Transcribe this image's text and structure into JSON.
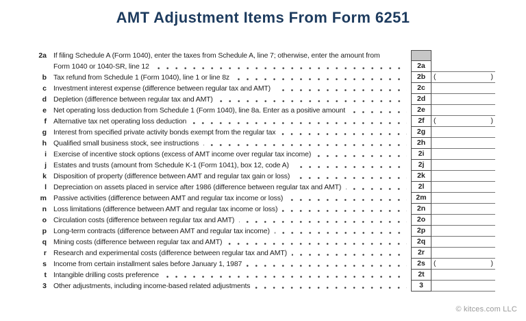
{
  "title": "AMT Adjustment Items From Form 6251",
  "footer": {
    "attribution": "© kitces.com LLC"
  },
  "colors": {
    "title": "#1d3b5e",
    "body_text": "#1f1f1f",
    "box_border": "#4d4d4d",
    "amount_underline": "#757575",
    "shaded_cell": "#c7c7c7",
    "footer_text": "#999999"
  },
  "form": {
    "rows": [
      {
        "num": "2a",
        "box_label": "2a",
        "lines": [
          "If filing Schedule A (Form 1040), enter the taxes from Schedule A, line 7; otherwise, enter the amount from",
          "Form 1040 or 1040-SR, line 12"
        ],
        "shaded_cell_above": true,
        "amount_value": "",
        "negative_parens": false
      },
      {
        "num": "b",
        "box_label": "2b",
        "lines": [
          "Tax refund from Schedule 1 (Form 1040), line 1 or line 8z"
        ],
        "shaded_cell_above": false,
        "amount_value": "",
        "negative_parens": true
      },
      {
        "num": "c",
        "box_label": "2c",
        "lines": [
          "Investment interest expense (difference between regular tax and AMT)"
        ],
        "shaded_cell_above": false,
        "amount_value": "",
        "negative_parens": false
      },
      {
        "num": "d",
        "box_label": "2d",
        "lines": [
          "Depletion (difference between regular tax and AMT)"
        ],
        "shaded_cell_above": false,
        "amount_value": "",
        "negative_parens": false
      },
      {
        "num": "e",
        "box_label": "2e",
        "lines": [
          "Net operating loss deduction from Schedule 1 (Form 1040), line 8a. Enter as a positive amount"
        ],
        "shaded_cell_above": false,
        "amount_value": "",
        "negative_parens": false
      },
      {
        "num": "f",
        "box_label": "2f",
        "lines": [
          "Alternative tax net operating loss deduction"
        ],
        "shaded_cell_above": false,
        "amount_value": "",
        "negative_parens": true
      },
      {
        "num": "g",
        "box_label": "2g",
        "lines": [
          "Interest from specified private activity bonds exempt from the regular tax"
        ],
        "shaded_cell_above": false,
        "amount_value": "",
        "negative_parens": false
      },
      {
        "num": "h",
        "box_label": "2h",
        "lines": [
          "Qualified small business stock, see instructions"
        ],
        "shaded_cell_above": false,
        "amount_value": "",
        "negative_parens": false
      },
      {
        "num": "i",
        "box_label": "2i",
        "lines": [
          "Exercise of incentive stock options (excess of AMT income over regular tax income)"
        ],
        "shaded_cell_above": false,
        "amount_value": "",
        "negative_parens": false
      },
      {
        "num": "j",
        "box_label": "2j",
        "lines": [
          "Estates and trusts (amount from Schedule K-1 (Form 1041), box 12, code A)"
        ],
        "shaded_cell_above": false,
        "amount_value": "",
        "negative_parens": false
      },
      {
        "num": "k",
        "box_label": "2k",
        "lines": [
          "Disposition of property (difference between AMT and regular tax gain or loss)"
        ],
        "shaded_cell_above": false,
        "amount_value": "",
        "negative_parens": false
      },
      {
        "num": "l",
        "box_label": "2l",
        "lines": [
          "Depreciation on assets placed in service after 1986 (difference between regular tax and AMT)"
        ],
        "shaded_cell_above": false,
        "amount_value": "",
        "negative_parens": false
      },
      {
        "num": "m",
        "box_label": "2m",
        "lines": [
          "Passive activities (difference between AMT and regular tax income or loss)"
        ],
        "shaded_cell_above": false,
        "amount_value": "",
        "negative_parens": false
      },
      {
        "num": "n",
        "box_label": "2n",
        "lines": [
          "Loss limitations (difference between AMT and regular tax income or loss)"
        ],
        "shaded_cell_above": false,
        "amount_value": "",
        "negative_parens": false
      },
      {
        "num": "o",
        "box_label": "2o",
        "lines": [
          "Circulation costs (difference between regular tax and AMT)"
        ],
        "shaded_cell_above": false,
        "amount_value": "",
        "negative_parens": false
      },
      {
        "num": "p",
        "box_label": "2p",
        "lines": [
          "Long-term contracts (difference between AMT and regular tax income)"
        ],
        "shaded_cell_above": false,
        "amount_value": "",
        "negative_parens": false
      },
      {
        "num": "q",
        "box_label": "2q",
        "lines": [
          "Mining costs (difference between regular tax and AMT)"
        ],
        "shaded_cell_above": false,
        "amount_value": "",
        "negative_parens": false
      },
      {
        "num": "r",
        "box_label": "2r",
        "lines": [
          "Research and experimental costs (difference between regular tax and AMT)"
        ],
        "shaded_cell_above": false,
        "amount_value": "",
        "negative_parens": false
      },
      {
        "num": "s",
        "box_label": "2s",
        "lines": [
          "Income from certain installment sales before January 1, 1987"
        ],
        "shaded_cell_above": false,
        "amount_value": "",
        "negative_parens": true
      },
      {
        "num": "t",
        "box_label": "2t",
        "lines": [
          "Intangible drilling costs preference"
        ],
        "shaded_cell_above": false,
        "amount_value": "",
        "negative_parens": false
      },
      {
        "num": "3",
        "box_label": "3",
        "lines": [
          "Other adjustments, including income-based related adjustments"
        ],
        "shaded_cell_above": false,
        "amount_value": "",
        "negative_parens": false
      }
    ]
  }
}
